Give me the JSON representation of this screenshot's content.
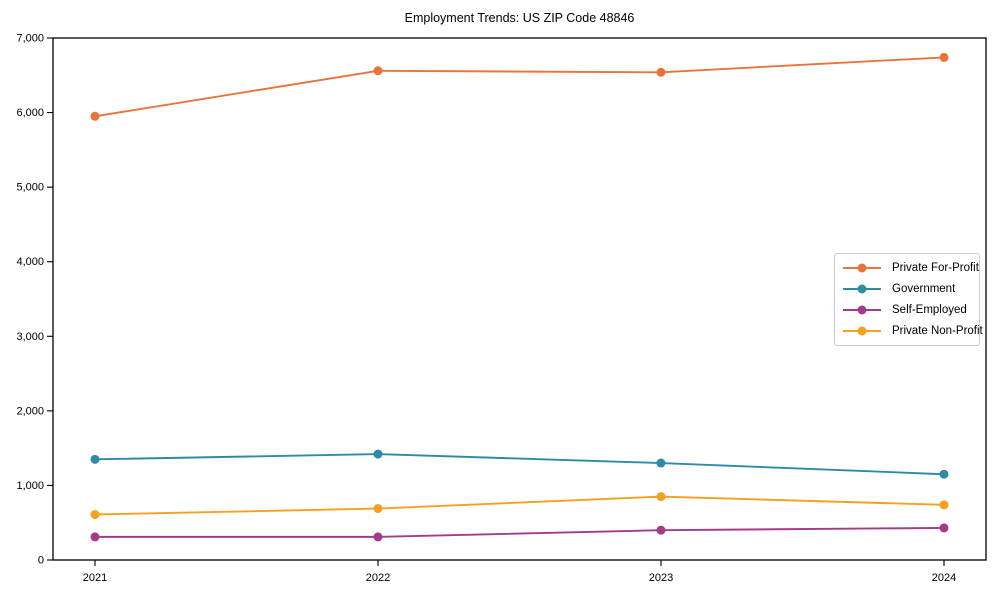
{
  "chart_data": {
    "type": "line",
    "title": "Employment Trends: US ZIP Code 48846",
    "categories": [
      "2021",
      "2022",
      "2023",
      "2024"
    ],
    "series": [
      {
        "name": "Private For-Profit",
        "color": "#e8743b",
        "values": [
          5950,
          6560,
          6540,
          6740
        ]
      },
      {
        "name": "Government",
        "color": "#2e8ba8",
        "values": [
          1350,
          1420,
          1300,
          1150
        ]
      },
      {
        "name": "Self-Employed",
        "color": "#a63a8a",
        "values": [
          310,
          310,
          400,
          430
        ]
      },
      {
        "name": "Private Non-Profit",
        "color": "#f5a01e",
        "values": [
          610,
          690,
          850,
          740
        ]
      }
    ],
    "xlabel": "",
    "ylabel": "",
    "ylim": [
      0,
      7000
    ],
    "ytick_step": 1000,
    "ytick_labels": [
      "0",
      "1,000",
      "2,000",
      "3,000",
      "4,000",
      "5,000",
      "6,000",
      "7,000"
    ],
    "grid": false,
    "legend_position": "center-right",
    "marker": "circle",
    "axis_color": "#000000",
    "background_color": "#ffffff"
  }
}
